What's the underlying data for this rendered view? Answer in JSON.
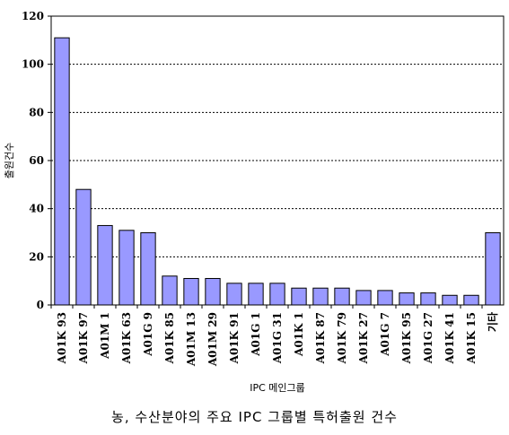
{
  "chart_data": {
    "type": "bar",
    "title": "",
    "xlabel": "IPC 메인그룹",
    "ylabel": "출원건수",
    "ylim": [
      0,
      120
    ],
    "yticks": [
      0,
      20,
      40,
      60,
      80,
      100,
      120
    ],
    "grid": "horizontal dotted",
    "bar_color": "#9999ff",
    "categories": [
      "A01K 93",
      "A01K 97",
      "A01M 1",
      "A01K 63",
      "A01G 9",
      "A01K 85",
      "A01M 13",
      "A01M 29",
      "A01K 91",
      "A01G 1",
      "A01G 31",
      "A01K 1",
      "A01K 87",
      "A01K 79",
      "A01K 27",
      "A01G 7",
      "A01K 95",
      "A01G 27",
      "A01K 41",
      "A01K 15",
      "기타"
    ],
    "values": [
      111,
      48,
      33,
      31,
      30,
      12,
      11,
      11,
      9,
      9,
      9,
      7,
      7,
      7,
      6,
      6,
      5,
      5,
      4,
      4,
      30
    ]
  },
  "caption": "농, 수산분야의 주요 IPC 그룹별 특허출원 건수"
}
